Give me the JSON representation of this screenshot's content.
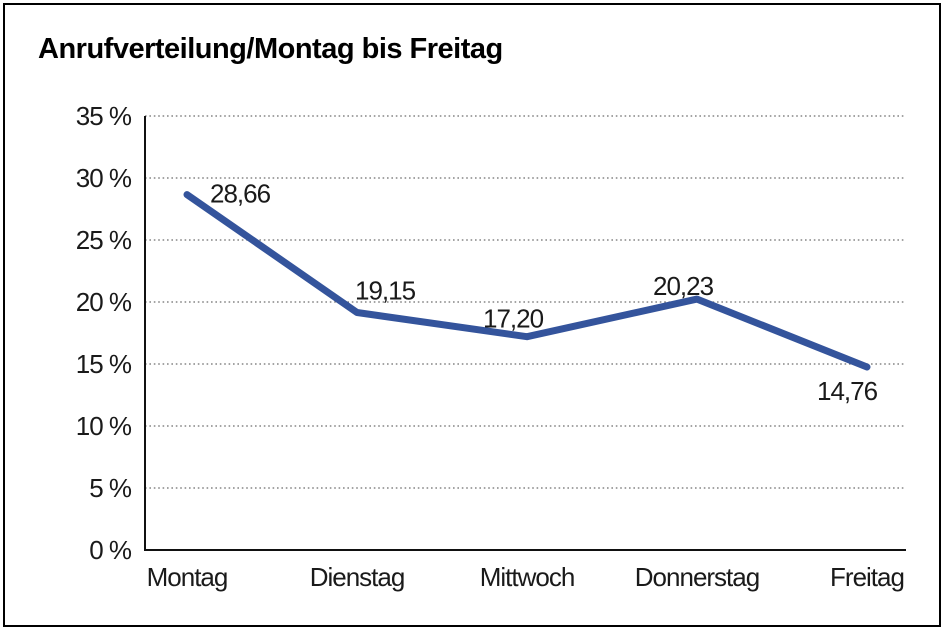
{
  "page": {
    "title": "Anrufverteilung/Montag bis Freitag"
  },
  "chart_data": {
    "type": "line",
    "title": "Anrufverteilung/Montag bis Freitag",
    "categories": [
      "Montag",
      "Dienstag",
      "Mittwoch",
      "Donnerstag",
      "Freitag"
    ],
    "values": [
      28.66,
      19.15,
      17.2,
      20.23,
      14.76
    ],
    "value_labels": [
      "28,66",
      "19,15",
      "17,20",
      "20,23",
      "14,76"
    ],
    "series_name": "Anrufverteilung",
    "xlabel": "",
    "ylabel": "",
    "ylim": [
      0,
      35
    ],
    "y_tick_step": 5,
    "y_tick_labels": [
      "0 %",
      "5 %",
      "10 %",
      "15 %",
      "20 %",
      "25 %",
      "30 %",
      "35 %"
    ],
    "grid": "horizontal-dotted",
    "legend": "none",
    "line_color": "#34549C",
    "grid_color": "#6e6e6e",
    "axis_color": "#111111",
    "text_color": "#1a1a1a"
  }
}
